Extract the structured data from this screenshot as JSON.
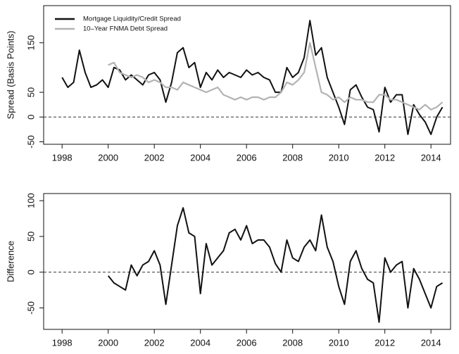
{
  "chart_data": [
    {
      "type": "line",
      "ylabel": "Spread (Basis Points)",
      "legend": "top-left",
      "xlim": [
        1997.2,
        2014.85
      ],
      "xticks": [
        1998,
        2000,
        2002,
        2004,
        2006,
        2008,
        2010,
        2012,
        2014
      ],
      "ylim": [
        -55,
        225
      ],
      "yticks": [
        -50,
        0,
        50,
        150
      ],
      "hline": 0,
      "series": [
        {
          "name": "Mortgage Liquidity/Credit Spread",
          "color": "#111111",
          "x": [
            1998,
            1998.25,
            1998.5,
            1998.75,
            1999,
            1999.25,
            1999.5,
            1999.75,
            2000,
            2000.25,
            2000.5,
            2000.75,
            2001,
            2001.25,
            2001.5,
            2001.75,
            2002,
            2002.25,
            2002.5,
            2002.75,
            2003,
            2003.25,
            2003.5,
            2003.75,
            2004,
            2004.25,
            2004.5,
            2004.75,
            2005,
            2005.25,
            2005.5,
            2005.75,
            2006,
            2006.25,
            2006.5,
            2006.75,
            2007,
            2007.25,
            2007.5,
            2007.75,
            2008,
            2008.25,
            2008.5,
            2008.75,
            2009,
            2009.25,
            2009.5,
            2009.75,
            2010,
            2010.25,
            2010.5,
            2010.75,
            2011,
            2011.25,
            2011.5,
            2011.75,
            2012,
            2012.25,
            2012.5,
            2012.75,
            2013,
            2013.25,
            2013.5,
            2013.75,
            2014,
            2014.25,
            2014.5
          ],
          "values": [
            80,
            60,
            70,
            135,
            90,
            60,
            65,
            75,
            60,
            100,
            95,
            75,
            85,
            75,
            65,
            85,
            90,
            75,
            30,
            70,
            130,
            140,
            100,
            110,
            60,
            90,
            75,
            95,
            80,
            90,
            85,
            80,
            95,
            85,
            90,
            80,
            75,
            50,
            50,
            100,
            80,
            90,
            120,
            195,
            125,
            140,
            80,
            50,
            20,
            -15,
            55,
            65,
            40,
            20,
            15,
            -30,
            60,
            30,
            45,
            45,
            -35,
            25,
            5,
            -10,
            -35,
            0,
            20
          ]
        },
        {
          "name": "10–Year FNMA Debt Spread",
          "color": "#b3b3b3",
          "x": [
            2000,
            2000.25,
            2000.5,
            2000.75,
            2001,
            2001.25,
            2001.5,
            2001.75,
            2002,
            2002.25,
            2002.5,
            2002.75,
            2003,
            2003.25,
            2003.5,
            2003.75,
            2004,
            2004.25,
            2004.5,
            2004.75,
            2005,
            2005.25,
            2005.5,
            2005.75,
            2006,
            2006.25,
            2006.5,
            2006.75,
            2007,
            2007.25,
            2007.5,
            2007.75,
            2008,
            2008.25,
            2008.5,
            2008.75,
            2009,
            2009.25,
            2009.5,
            2009.75,
            2010,
            2010.25,
            2010.5,
            2010.75,
            2011,
            2011.25,
            2011.5,
            2011.75,
            2012,
            2012.25,
            2012.5,
            2012.75,
            2013,
            2013.25,
            2013.5,
            2013.75,
            2014,
            2014.25,
            2014.5
          ],
          "values": [
            105,
            110,
            90,
            85,
            80,
            85,
            80,
            70,
            75,
            70,
            60,
            60,
            55,
            70,
            65,
            60,
            55,
            50,
            55,
            60,
            45,
            40,
            35,
            40,
            35,
            40,
            40,
            35,
            40,
            40,
            50,
            70,
            65,
            75,
            90,
            150,
            100,
            50,
            45,
            35,
            40,
            30,
            40,
            35,
            35,
            30,
            30,
            45,
            45,
            35,
            35,
            30,
            25,
            20,
            15,
            25,
            15,
            20,
            30
          ]
        }
      ]
    },
    {
      "type": "line",
      "ylabel": "Difference",
      "xlim": [
        1997.2,
        2014.85
      ],
      "xticks": [
        1998,
        2000,
        2002,
        2004,
        2006,
        2008,
        2010,
        2012,
        2014
      ],
      "ylim": [
        -80,
        110
      ],
      "yticks": [
        -50,
        0,
        50,
        100
      ],
      "hline": 0,
      "series": [
        {
          "color": "#111111",
          "x": [
            2000,
            2000.25,
            2000.5,
            2000.75,
            2001,
            2001.25,
            2001.5,
            2001.75,
            2002,
            2002.25,
            2002.5,
            2002.75,
            2003,
            2003.25,
            2003.5,
            2003.75,
            2004,
            2004.25,
            2004.5,
            2004.75,
            2005,
            2005.25,
            2005.5,
            2005.75,
            2006,
            2006.25,
            2006.5,
            2006.75,
            2007,
            2007.25,
            2007.5,
            2007.75,
            2008,
            2008.25,
            2008.5,
            2008.75,
            2009,
            2009.25,
            2009.5,
            2009.75,
            2010,
            2010.25,
            2010.5,
            2010.75,
            2011,
            2011.25,
            2011.5,
            2011.75,
            2012,
            2012.25,
            2012.5,
            2012.75,
            2013,
            2013.25,
            2013.5,
            2013.75,
            2014,
            2014.25,
            2014.5
          ],
          "values": [
            -5,
            -15,
            -20,
            -25,
            10,
            -5,
            10,
            15,
            30,
            10,
            -45,
            10,
            65,
            90,
            55,
            50,
            -30,
            40,
            10,
            20,
            30,
            55,
            60,
            45,
            65,
            40,
            45,
            45,
            35,
            12,
            0,
            45,
            20,
            15,
            35,
            45,
            30,
            80,
            35,
            15,
            -20,
            -45,
            15,
            30,
            5,
            -10,
            -15,
            -70,
            20,
            0,
            10,
            15,
            -50,
            5,
            -10,
            -30,
            -50,
            -20,
            -15
          ]
        }
      ]
    }
  ]
}
